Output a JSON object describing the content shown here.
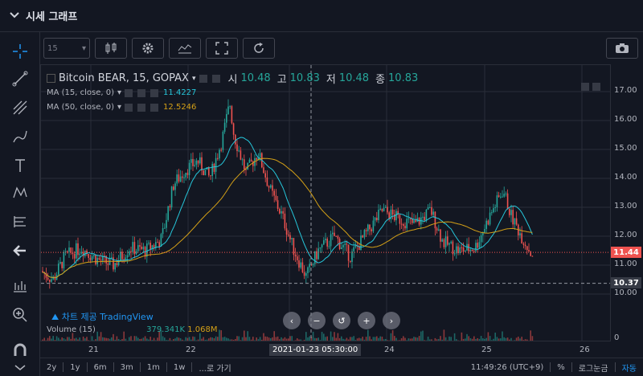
{
  "header": {
    "title": "시세 그래프"
  },
  "toolbar": {
    "interval": "15"
  },
  "legend": {
    "title": "Bitcoin BEAR, 15, GOPAX",
    "o_label": "시",
    "o": "10.48",
    "h_label": "고",
    "h": "10.83",
    "l_label": "저",
    "l": "10.48",
    "c_label": "종",
    "c": "10.83",
    "ma15_label": "MA (15, close, 0)",
    "ma15": "11.4227",
    "ma50_label": "MA (50, close, 0)",
    "ma50": "12.5246"
  },
  "price_axis": {
    "ticks": [
      "17.00",
      "16.00",
      "15.00",
      "14.00",
      "13.00",
      "12.00",
      "11.00",
      "10.00",
      "0"
    ],
    "current": "11.44",
    "crosshair": "10.37"
  },
  "time_axis": {
    "ticks": [
      "21",
      "22",
      "24",
      "25",
      "26"
    ],
    "crosshair": "2021-01-23 05:30:00"
  },
  "attribution": "차트 제공 TradingView",
  "volume": {
    "label": "Volume (15)",
    "v1": "379.341K",
    "v2": "1.068M"
  },
  "bottom": {
    "ranges": [
      "2y",
      "1y",
      "6m",
      "3m",
      "1m",
      "1w",
      "...로 가기"
    ],
    "clock": "11:49:26 (UTC+9)",
    "pct": "%",
    "log": "로그눈금",
    "auto": "자동"
  },
  "colors": {
    "up": "#26a69a",
    "down": "#ef5350",
    "ma15": "#26c6da",
    "ma50": "#d4a017",
    "accent": "#2196f3"
  }
}
